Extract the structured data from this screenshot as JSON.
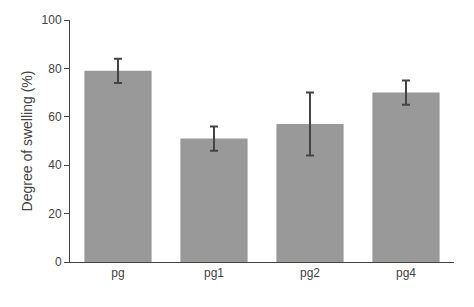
{
  "chart_data": {
    "type": "bar",
    "categories": [
      "pg",
      "pg1",
      "pg2",
      "pg4"
    ],
    "values": [
      79.0,
      51.0,
      57.0,
      70.0
    ],
    "errors": [
      5.0,
      5.0,
      13.0,
      5.0
    ],
    "color": "#999999",
    "ylabel": "Degree of swelling (%)",
    "ylim": [
      0,
      100
    ],
    "yticks": [
      0,
      20,
      40,
      60,
      80,
      100
    ],
    "grid": false
  }
}
